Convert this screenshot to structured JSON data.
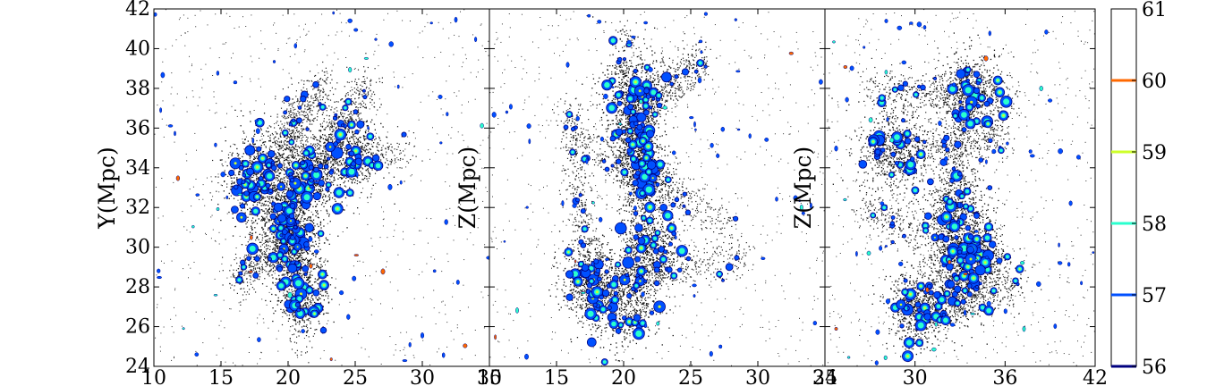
{
  "figure": {
    "description": "Three-panel projected particle/halo distribution with density contour colorbar",
    "colorbar": {
      "ticks": [
        56,
        57,
        58,
        59,
        60,
        61
      ],
      "ticks_text": [
        "56",
        "57",
        "58",
        "59",
        "60",
        "61"
      ],
      "range": [
        56,
        61
      ],
      "colors": [
        {
          "value": 56,
          "hex": "#00007f"
        },
        {
          "value": 57,
          "hex": "#0050ff"
        },
        {
          "value": 58,
          "hex": "#29ffce"
        },
        {
          "value": 59,
          "hex": "#ceff29"
        },
        {
          "value": 60,
          "hex": "#ff6800"
        },
        {
          "value": 61,
          "hex": "#ffffff"
        }
      ]
    }
  },
  "chart_data": [
    {
      "type": "scatter",
      "panel": "left",
      "xlabel": "",
      "ylabel": "Y(Mpc)",
      "xlim": [
        10,
        35
      ],
      "ylim": [
        24,
        42
      ],
      "xticks": [
        10,
        15,
        20,
        25,
        30,
        35
      ],
      "xticks_text": [
        "10",
        "15",
        "20",
        "25",
        "30",
        "35"
      ],
      "yticks": [
        24,
        26,
        28,
        30,
        32,
        34,
        36,
        38,
        40,
        42
      ],
      "yticks_text": [
        "24",
        "26",
        "28",
        "30",
        "32",
        "34",
        "36",
        "38",
        "40",
        "42"
      ],
      "clusters": [
        {
          "x": 17.8,
          "y": 33.5,
          "spread": 1.2
        },
        {
          "x": 21.5,
          "y": 33.5,
          "spread": 1.2
        },
        {
          "x": 20.2,
          "y": 30.5,
          "spread": 1.0
        },
        {
          "x": 19.5,
          "y": 32.0,
          "spread": 1.3
        },
        {
          "x": 21.0,
          "y": 28.0,
          "spread": 1.0
        },
        {
          "x": 24.5,
          "y": 34.8,
          "spread": 1.2
        }
      ],
      "filaments": [
        {
          "from": [
            15.0,
            33.5
          ],
          "to": [
            29.0,
            34.8
          ]
        },
        {
          "from": [
            20.0,
            37.5
          ],
          "to": [
            21.0,
            25.0
          ]
        },
        {
          "from": [
            18.0,
            34.0
          ],
          "to": [
            23.0,
            38.5
          ]
        },
        {
          "from": [
            20.5,
            30.5
          ],
          "to": [
            16.0,
            28.5
          ]
        },
        {
          "from": [
            21.5,
            33.5
          ],
          "to": [
            26.0,
            38.5
          ]
        }
      ],
      "grid": false
    },
    {
      "type": "scatter",
      "panel": "middle",
      "xlabel": "",
      "ylabel": "Z(Mpc)",
      "xlim": [
        10,
        35
      ],
      "ylim": [
        24,
        42
      ],
      "xticks": [
        10,
        15,
        20,
        25,
        30,
        35
      ],
      "xticks_text": [
        "10",
        "15",
        "20",
        "25",
        "30",
        "35"
      ],
      "clusters": [
        {
          "x": 20.5,
          "y": 37.8,
          "spread": 1.2
        },
        {
          "x": 17.5,
          "y": 28.3,
          "spread": 1.1
        },
        {
          "x": 20.0,
          "y": 27.2,
          "spread": 1.2
        },
        {
          "x": 21.5,
          "y": 33.5,
          "spread": 1.0
        },
        {
          "x": 22.0,
          "y": 30.0,
          "spread": 1.0
        },
        {
          "x": 21.0,
          "y": 35.5,
          "spread": 0.9
        }
      ],
      "filaments": [
        {
          "from": [
            20.0,
            41.0
          ],
          "to": [
            21.5,
            26.0
          ]
        },
        {
          "from": [
            16.0,
            37.0
          ],
          "to": [
            17.5,
            27.5
          ]
        },
        {
          "from": [
            17.0,
            28.0
          ],
          "to": [
            29.0,
            29.5
          ]
        },
        {
          "from": [
            16.5,
            35.5
          ],
          "to": [
            28.0,
            31.0
          ]
        },
        {
          "from": [
            21.0,
            37.0
          ],
          "to": [
            26.0,
            39.5
          ]
        }
      ],
      "grid": false
    },
    {
      "type": "scatter",
      "panel": "right",
      "xlabel": "",
      "ylabel": "Z(Mpc)",
      "xlim": [
        24,
        42
      ],
      "ylim": [
        24,
        42
      ],
      "xticks": [
        24,
        30,
        36,
        42
      ],
      "xticks_text": [
        "24",
        "30",
        "36",
        "42"
      ],
      "clusters": [
        {
          "x": 33.8,
          "y": 37.7,
          "spread": 1.1
        },
        {
          "x": 30.2,
          "y": 26.9,
          "spread": 1.0
        },
        {
          "x": 33.0,
          "y": 28.5,
          "spread": 1.2
        },
        {
          "x": 32.5,
          "y": 32.0,
          "spread": 1.1
        },
        {
          "x": 34.0,
          "y": 29.8,
          "spread": 1.0
        },
        {
          "x": 28.5,
          "y": 35.0,
          "spread": 1.2
        }
      ],
      "filaments": [
        {
          "from": [
            33.0,
            39.0
          ],
          "to": [
            32.5,
            26.5
          ]
        },
        {
          "from": [
            27.0,
            38.0
          ],
          "to": [
            36.5,
            37.5
          ]
        },
        {
          "from": [
            26.5,
            32.0
          ],
          "to": [
            36.0,
            29.0
          ]
        },
        {
          "from": [
            27.0,
            34.5
          ],
          "to": [
            36.0,
            35.5
          ]
        },
        {
          "from": [
            29.0,
            27.0
          ],
          "to": [
            37.0,
            28.0
          ]
        }
      ],
      "grid": false
    }
  ]
}
